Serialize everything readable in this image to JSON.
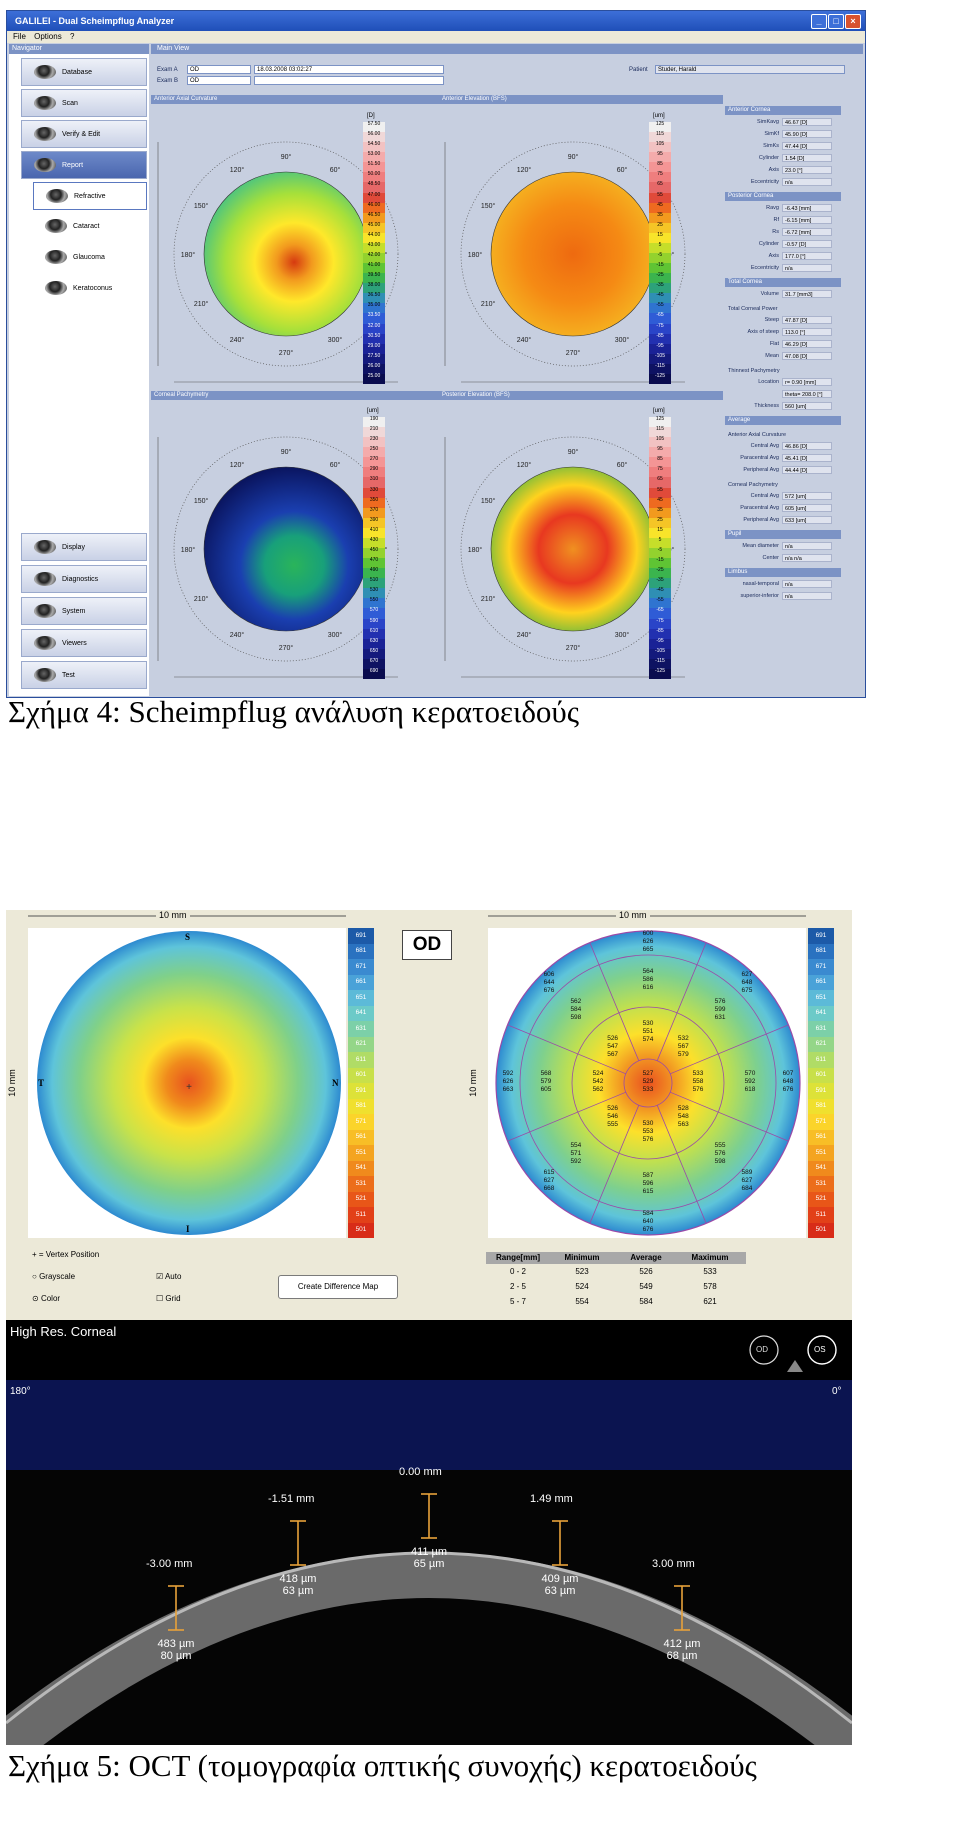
{
  "galilei": {
    "window_title": "GALILEI - Dual Scheimpflug Analyzer",
    "menu": [
      "File",
      "Options",
      "?"
    ],
    "navigator_header": "Navigator",
    "nav_items": [
      "Database",
      "Scan",
      "Verify & Edit",
      "Report"
    ],
    "report_subitems": [
      "Refractive",
      "Cataract",
      "Glaucoma",
      "Keratoconus"
    ],
    "nav_bottom_items": [
      "Display",
      "Diagnostics",
      "System",
      "Viewers",
      "Test"
    ],
    "main_view_header": "Main View",
    "exam_a_label": "Exam A",
    "exam_a_value": "OD",
    "exam_a_date": "18.03.2008  03:02:27",
    "exam_b_label": "Exam B",
    "exam_b_value": "OD",
    "patient_label": "Patient",
    "patient_value": "Studer, Harald",
    "maps": [
      {
        "title": "Anterior Axial Curvature",
        "unit": "[D]",
        "scale": [
          "57.50",
          "56.00",
          "54.50",
          "53.00",
          "51.50",
          "50.00",
          "48.50",
          "47.00",
          "46.00",
          "46.50",
          "45.00",
          "44.00",
          "43.00",
          "42.00",
          "41.00",
          "39.50",
          "38.00",
          "36.50",
          "35.00",
          "33.50",
          "32.00",
          "30.50",
          "29.00",
          "27.50",
          "26.00",
          "25.00"
        ]
      },
      {
        "title": "Anterior Elevation (BFS)",
        "unit": "[um]",
        "scale": [
          "125",
          "115",
          "105",
          "95",
          "85",
          "75",
          "65",
          "55",
          "45",
          "35",
          "25",
          "15",
          "5",
          "-5",
          "-15",
          "-25",
          "-35",
          "-45",
          "-55",
          "-65",
          "-75",
          "-85",
          "-95",
          "-105",
          "-115",
          "-125"
        ]
      },
      {
        "title": "Corneal Pachymetry",
        "unit": "[um]",
        "scale": [
          "190",
          "210",
          "230",
          "250",
          "270",
          "290",
          "310",
          "330",
          "350",
          "370",
          "390",
          "410",
          "430",
          "450",
          "470",
          "490",
          "510",
          "530",
          "550",
          "570",
          "590",
          "610",
          "630",
          "650",
          "670",
          "690"
        ]
      },
      {
        "title": "Posterior Elevation (BFS)",
        "unit": "[um]",
        "scale": [
          "125",
          "115",
          "105",
          "95",
          "85",
          "75",
          "65",
          "55",
          "45",
          "35",
          "25",
          "15",
          "5",
          "-5",
          "-15",
          "-25",
          "-35",
          "-45",
          "-55",
          "-65",
          "-75",
          "-85",
          "-95",
          "-105",
          "-115",
          "-125"
        ]
      }
    ],
    "angle_labels": [
      "90°",
      "120°",
      "150°",
      "180°",
      "210°",
      "240°",
      "270°",
      "300°",
      "330°",
      "0°",
      "60°",
      "30°"
    ],
    "right_panel": {
      "sections": [
        {
          "title": "Anterior Cornea",
          "rows": [
            [
              "SimKavg",
              "46.67 [D]"
            ],
            [
              "SimKf",
              "45.90 [D]"
            ],
            [
              "SimKs",
              "47.44 [D]"
            ],
            [
              "Cylinder",
              "1.54 [D]"
            ],
            [
              "Axis",
              "23.0 [°]"
            ],
            [
              "Eccentricity",
              "n/a"
            ]
          ]
        },
        {
          "title": "Posterior Cornea",
          "rows": [
            [
              "Ravg",
              "-6.43 [mm]"
            ],
            [
              "Rf",
              "-6.15 [mm]"
            ],
            [
              "Rs",
              "-6.72 [mm]"
            ],
            [
              "Cylinder",
              "-0.57 [D]"
            ],
            [
              "Axis",
              "177.0 [°]"
            ],
            [
              "Eccentricity",
              "n/a"
            ]
          ]
        },
        {
          "title": "Total Cornea",
          "rows": [
            [
              "Volume",
              "31.7 [mm3]"
            ]
          ]
        },
        {
          "title": "Total Corneal Power",
          "plain": true,
          "rows": [
            [
              "Steep",
              "47.87 [D]"
            ],
            [
              "Axis of steep",
              "113.0 [°]"
            ],
            [
              "Flat",
              "46.29 [D]"
            ],
            [
              "Mean",
              "47.08 [D]"
            ]
          ]
        },
        {
          "title": "Thinnest Pachymetry",
          "plain": true,
          "rows": [
            [
              "Location",
              "r= 0.90 [mm]"
            ],
            [
              "",
              "theta= 208.0 [°]"
            ],
            [
              "Thickness",
              "560 [um]"
            ]
          ]
        },
        {
          "title": "Average",
          "rows": []
        },
        {
          "title": "Anterior Axial Curvature",
          "plain": true,
          "rows": [
            [
              "Central Avg",
              "46.86 [D]"
            ],
            [
              "Paracentral Avg",
              "45.41 [D]"
            ],
            [
              "Peripheral Avg",
              "44.44 [D]"
            ]
          ]
        },
        {
          "title": "Corneal Pachymetry",
          "plain": true,
          "rows": [
            [
              "Central Avg",
              "572 [um]"
            ],
            [
              "Paracentral Avg",
              "605 [um]"
            ],
            [
              "Peripheral Avg",
              "633 [um]"
            ]
          ]
        },
        {
          "title": "Pupil",
          "rows": [
            [
              "Mean diameter",
              "n/a"
            ],
            [
              "Center",
              "n/a   n/a"
            ]
          ]
        },
        {
          "title": "Limbus",
          "rows": [
            [
              "nasal-temporal",
              "n/a"
            ],
            [
              "superior-inferior",
              "n/a"
            ]
          ]
        }
      ]
    }
  },
  "caption4": "Σχήμα 4: Scheimpflug ανάλυση κερατοειδούς",
  "oct": {
    "left_map_scale_label": "10 mm",
    "left_map_vert_label": "10 mm",
    "eye_box": "OD",
    "right_map_scale_label": "10 mm",
    "right_map_vert_label": "10 mm",
    "orient": {
      "top": "S",
      "bottom": "I",
      "left": "T",
      "right": "N"
    },
    "colorscale": [
      "691",
      "681",
      "671",
      "661",
      "651",
      "641",
      "631",
      "621",
      "611",
      "601",
      "591",
      "581",
      "571",
      "561",
      "551",
      "541",
      "531",
      "521",
      "511",
      "501"
    ],
    "vertex_legend": "+ = Vertex Position",
    "radio_grayscale": "Grayscale",
    "radio_color": "Color",
    "check_auto": "Auto",
    "check_grid": "Grid",
    "diff_button": "Create Difference Map",
    "table_headers": [
      "Range[mm]",
      "Minimum",
      "Average",
      "Maximum"
    ],
    "table_rows": [
      [
        "0 - 2",
        "523",
        "526",
        "533"
      ],
      [
        "2 - 5",
        "524",
        "549",
        "578"
      ],
      [
        "5 - 7",
        "554",
        "584",
        "621"
      ]
    ],
    "sector_values": [
      {
        "lines": [
          "527",
          "529",
          "533"
        ]
      },
      {
        "lines": [
          "530",
          "551",
          "574"
        ]
      },
      {
        "lines": [
          "532",
          "567",
          "579"
        ]
      },
      {
        "lines": [
          "533",
          "558",
          "576"
        ]
      },
      {
        "lines": [
          "528",
          "548",
          "563"
        ]
      },
      {
        "lines": [
          "530",
          "553",
          "576"
        ]
      },
      {
        "lines": [
          "526",
          "546",
          "555"
        ]
      },
      {
        "lines": [
          "524",
          "542",
          "562"
        ]
      },
      {
        "lines": [
          "526",
          "547",
          "567"
        ]
      },
      {
        "lines": [
          "564",
          "586",
          "616"
        ]
      },
      {
        "lines": [
          "576",
          "599",
          "631"
        ]
      },
      {
        "lines": [
          "570",
          "592",
          "618"
        ]
      },
      {
        "lines": [
          "555",
          "576",
          "598"
        ]
      },
      {
        "lines": [
          "587",
          "596",
          "615"
        ]
      },
      {
        "lines": [
          "554",
          "571",
          "592"
        ]
      },
      {
        "lines": [
          "568",
          "579",
          "605"
        ]
      },
      {
        "lines": [
          "562",
          "584",
          "598"
        ]
      },
      {
        "lines": [
          "600",
          "626",
          "665"
        ]
      },
      {
        "lines": [
          "627",
          "648",
          "675"
        ]
      },
      {
        "lines": [
          "607",
          "648",
          "676"
        ]
      },
      {
        "lines": [
          "589",
          "627",
          "684"
        ]
      },
      {
        "lines": [
          "584",
          "640",
          "676"
        ]
      },
      {
        "lines": [
          "615",
          "627",
          "668"
        ]
      },
      {
        "lines": [
          "592",
          "626",
          "663"
        ]
      },
      {
        "lines": [
          "606",
          "644",
          "676"
        ]
      }
    ],
    "bscan_title": "High Res. Corneal",
    "bscan_left_angle": "180°",
    "bscan_right_angle": "0°",
    "bscan_od": "OD",
    "bscan_os": "OS",
    "measurements": [
      {
        "pos": "-3.00 mm",
        "thick": "483 µm",
        "epi": "80 µm"
      },
      {
        "pos": "-1.51 mm",
        "thick": "418 µm",
        "epi": "63 µm"
      },
      {
        "pos": "0.00 mm",
        "thick": "411 µm",
        "epi": "65 µm"
      },
      {
        "pos": "1.49 mm",
        "thick": "409 µm",
        "epi": "63 µm"
      },
      {
        "pos": "3.00 mm",
        "thick": "412 µm",
        "epi": "68 µm"
      }
    ]
  },
  "caption5": "Σχήμα 5: OCT (τομογραφία οπτικής συνοχής) κερατοειδούς"
}
